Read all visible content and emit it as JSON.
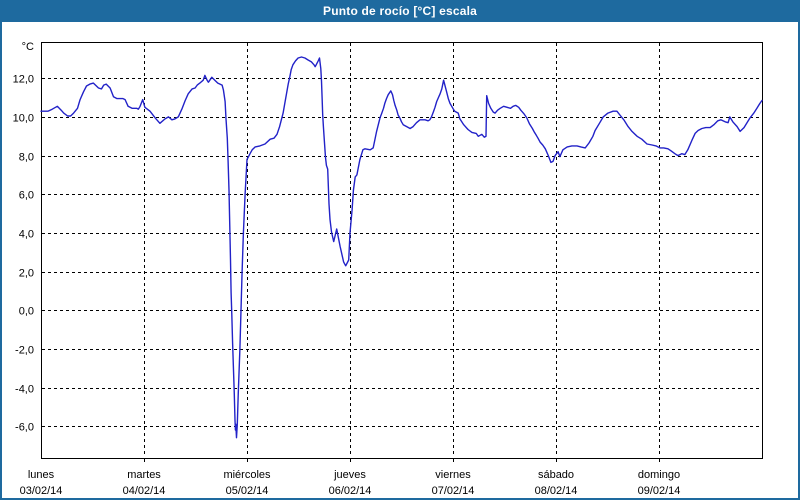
{
  "window": {
    "title": "Punto de rocío [°C] escala"
  },
  "colors": {
    "title_bar": "#1e6a9f",
    "title_text": "#ffffff",
    "window_border": "#1e6a9f",
    "plot_line": "#2222c8",
    "grid": "#000000",
    "background": "#ffffff"
  },
  "chart_data": {
    "type": "line",
    "title": "Punto de rocío [°C] escala",
    "ylabel": "°C",
    "legend": "none",
    "grid": {
      "style": "dashed",
      "color": "#000000"
    },
    "y_axis": {
      "unit_label": "°C",
      "tick_values": [
        12,
        10,
        8,
        6,
        4,
        2,
        0,
        -2,
        -4,
        -6
      ],
      "tick_labels": [
        "12,0",
        "10,0",
        "8,0",
        "6,0",
        "4,0",
        "2,0",
        "0,0",
        "-2,0",
        "-4,0",
        "-6,0"
      ],
      "ylim": [
        -7.6,
        13.9
      ]
    },
    "x_axis": {
      "hours_range": [
        0,
        168
      ],
      "day_tick_hours": [
        0,
        24,
        48,
        72,
        96,
        120,
        144
      ],
      "days": [
        {
          "name": "lunes",
          "date": "03/02/14"
        },
        {
          "name": "martes",
          "date": "04/02/14"
        },
        {
          "name": "miércoles",
          "date": "05/02/14"
        },
        {
          "name": "jueves",
          "date": "06/02/14"
        },
        {
          "name": "viernes",
          "date": "07/02/14"
        },
        {
          "name": "sábado",
          "date": "08/02/14"
        },
        {
          "name": "domingo",
          "date": "09/02/14"
        }
      ]
    },
    "series": [
      {
        "name": "Punto de rocío",
        "unit": "°C",
        "color": "#2222c8",
        "points_hours_value": [
          [
            0,
            10.3
          ],
          [
            1.6,
            10.3
          ],
          [
            2.6,
            10.4
          ],
          [
            3.8,
            10.55
          ],
          [
            4.7,
            10.35
          ],
          [
            5.3,
            10.2
          ],
          [
            6.2,
            10.05
          ],
          [
            6.9,
            10.05
          ],
          [
            7.6,
            10.2
          ],
          [
            8.5,
            10.45
          ],
          [
            9.1,
            10.9
          ],
          [
            9.9,
            11.3
          ],
          [
            10.6,
            11.6
          ],
          [
            11.4,
            11.7
          ],
          [
            12.2,
            11.75
          ],
          [
            13.4,
            11.5
          ],
          [
            14.1,
            11.45
          ],
          [
            14.6,
            11.65
          ],
          [
            15.2,
            11.7
          ],
          [
            16.1,
            11.5
          ],
          [
            16.9,
            11.05
          ],
          [
            17.7,
            10.95
          ],
          [
            19.1,
            10.95
          ],
          [
            19.6,
            10.9
          ],
          [
            20.3,
            10.55
          ],
          [
            21.2,
            10.45
          ],
          [
            22.3,
            10.45
          ],
          [
            22.7,
            10.4
          ],
          [
            23.1,
            10.55
          ],
          [
            23.7,
            10.9
          ],
          [
            24.2,
            10.5
          ],
          [
            25.4,
            10.3
          ],
          [
            26.6,
            9.95
          ],
          [
            27.7,
            9.67
          ],
          [
            28.9,
            9.9
          ],
          [
            29.7,
            10.0
          ],
          [
            30.5,
            9.85
          ],
          [
            31.2,
            9.9
          ],
          [
            32.0,
            10.0
          ],
          [
            32.9,
            10.45
          ],
          [
            33.6,
            10.85
          ],
          [
            34.3,
            11.2
          ],
          [
            35.2,
            11.45
          ],
          [
            35.9,
            11.5
          ],
          [
            36.4,
            11.65
          ],
          [
            37.0,
            11.75
          ],
          [
            37.8,
            11.9
          ],
          [
            38.2,
            12.15
          ],
          [
            38.7,
            11.9
          ],
          [
            39.0,
            11.8
          ],
          [
            39.8,
            12.05
          ],
          [
            40.5,
            11.9
          ],
          [
            41.2,
            11.75
          ],
          [
            42.2,
            11.65
          ],
          [
            42.5,
            11.4
          ],
          [
            42.9,
            10.8
          ],
          [
            43.1,
            9.9
          ],
          [
            43.4,
            8.9
          ],
          [
            43.6,
            7.7
          ],
          [
            43.8,
            6.2
          ],
          [
            44.0,
            4.3
          ],
          [
            44.15,
            2.6
          ],
          [
            44.3,
            0.9
          ],
          [
            44.45,
            -0.2
          ],
          [
            44.65,
            -1.7
          ],
          [
            44.85,
            -3.1
          ],
          [
            45.05,
            -4.35
          ],
          [
            45.2,
            -5.7
          ],
          [
            45.3,
            -6.2
          ],
          [
            45.4,
            -5.9
          ],
          [
            45.55,
            -6.6
          ],
          [
            45.75,
            -5.9
          ],
          [
            45.95,
            -4.4
          ],
          [
            46.35,
            -2.0
          ],
          [
            46.6,
            0.0
          ],
          [
            46.85,
            2.0
          ],
          [
            47.15,
            4.0
          ],
          [
            47.55,
            6.0
          ],
          [
            48.0,
            7.8
          ],
          [
            48.7,
            8.1
          ],
          [
            49.2,
            8.3
          ],
          [
            49.9,
            8.45
          ],
          [
            51.0,
            8.5
          ],
          [
            52.2,
            8.6
          ],
          [
            53.4,
            8.85
          ],
          [
            54.3,
            8.9
          ],
          [
            55.0,
            9.1
          ],
          [
            55.6,
            9.5
          ],
          [
            56.4,
            10.2
          ],
          [
            56.8,
            10.7
          ],
          [
            57.2,
            11.2
          ],
          [
            57.6,
            11.7
          ],
          [
            58.0,
            12.1
          ],
          [
            58.3,
            12.45
          ],
          [
            58.7,
            12.7
          ],
          [
            59.3,
            12.9
          ],
          [
            59.9,
            13.05
          ],
          [
            60.7,
            13.1
          ],
          [
            61.5,
            13.05
          ],
          [
            62.2,
            12.95
          ],
          [
            63.0,
            12.85
          ],
          [
            63.6,
            12.7
          ],
          [
            63.9,
            12.6
          ],
          [
            64.6,
            12.9
          ],
          [
            64.9,
            13.05
          ],
          [
            65.2,
            12.5
          ],
          [
            65.35,
            11.85
          ],
          [
            65.5,
            11.0
          ],
          [
            65.65,
            10.1
          ],
          [
            65.8,
            9.5
          ],
          [
            66.0,
            8.8
          ],
          [
            66.3,
            7.9
          ],
          [
            66.5,
            7.5
          ],
          [
            66.8,
            7.3
          ],
          [
            67.1,
            5.5
          ],
          [
            67.35,
            4.7
          ],
          [
            67.7,
            4.05
          ],
          [
            68.2,
            3.55
          ],
          [
            68.9,
            4.2
          ],
          [
            69.7,
            3.3
          ],
          [
            70.5,
            2.5
          ],
          [
            71.0,
            2.3
          ],
          [
            71.7,
            2.6
          ],
          [
            72.0,
            4.0
          ],
          [
            72.5,
            5.2
          ],
          [
            72.8,
            6.2
          ],
          [
            73.2,
            6.9
          ],
          [
            73.6,
            7.0
          ],
          [
            74.3,
            7.8
          ],
          [
            75.0,
            8.3
          ],
          [
            75.5,
            8.35
          ],
          [
            76.7,
            8.3
          ],
          [
            77.4,
            8.4
          ],
          [
            78.2,
            9.25
          ],
          [
            78.6,
            9.6
          ],
          [
            79.0,
            9.95
          ],
          [
            79.4,
            10.2
          ],
          [
            79.8,
            10.45
          ],
          [
            80.1,
            10.7
          ],
          [
            80.5,
            10.95
          ],
          [
            80.9,
            11.15
          ],
          [
            81.5,
            11.35
          ],
          [
            81.9,
            11.15
          ],
          [
            82.2,
            10.85
          ],
          [
            82.5,
            10.6
          ],
          [
            82.9,
            10.35
          ],
          [
            83.2,
            10.1
          ],
          [
            83.6,
            9.95
          ],
          [
            84.0,
            9.75
          ],
          [
            84.4,
            9.6
          ],
          [
            85.2,
            9.5
          ],
          [
            86.0,
            9.4
          ],
          [
            86.7,
            9.5
          ],
          [
            87.5,
            9.7
          ],
          [
            88.3,
            9.85
          ],
          [
            89.5,
            9.85
          ],
          [
            90.2,
            9.8
          ],
          [
            90.6,
            9.85
          ],
          [
            91.0,
            10.0
          ],
          [
            91.4,
            10.25
          ],
          [
            91.8,
            10.5
          ],
          [
            92.2,
            10.8
          ],
          [
            92.6,
            11.0
          ],
          [
            93.0,
            11.2
          ],
          [
            93.4,
            11.45
          ],
          [
            93.8,
            11.9
          ],
          [
            94.5,
            11.3
          ],
          [
            94.9,
            10.95
          ],
          [
            95.3,
            10.7
          ],
          [
            96.1,
            10.4
          ],
          [
            96.4,
            10.3
          ],
          [
            97.2,
            10.2
          ],
          [
            97.6,
            9.9
          ],
          [
            98.5,
            9.6
          ],
          [
            99.5,
            9.35
          ],
          [
            100.4,
            9.2
          ],
          [
            101.4,
            9.15
          ],
          [
            101.9,
            9.0
          ],
          [
            102.7,
            9.1
          ],
          [
            103.3,
            8.95
          ],
          [
            103.7,
            9.0
          ],
          [
            103.85,
            11.1
          ],
          [
            104.3,
            10.7
          ],
          [
            104.8,
            10.45
          ],
          [
            105.4,
            10.25
          ],
          [
            105.8,
            10.2
          ],
          [
            106.4,
            10.35
          ],
          [
            107.0,
            10.45
          ],
          [
            107.8,
            10.55
          ],
          [
            108.6,
            10.5
          ],
          [
            109.4,
            10.45
          ],
          [
            110.0,
            10.55
          ],
          [
            110.6,
            10.6
          ],
          [
            111.3,
            10.5
          ],
          [
            111.8,
            10.35
          ],
          [
            112.6,
            10.15
          ],
          [
            113.2,
            9.95
          ],
          [
            113.8,
            9.65
          ],
          [
            114.5,
            9.4
          ],
          [
            115.0,
            9.2
          ],
          [
            115.4,
            9.05
          ],
          [
            115.8,
            8.9
          ],
          [
            116.3,
            8.7
          ],
          [
            116.9,
            8.55
          ],
          [
            117.5,
            8.35
          ],
          [
            118.2,
            8.0
          ],
          [
            118.8,
            7.65
          ],
          [
            119.3,
            7.7
          ],
          [
            119.8,
            8.0
          ],
          [
            120.5,
            8.2
          ],
          [
            120.9,
            7.95
          ],
          [
            121.6,
            8.3
          ],
          [
            122.6,
            8.45
          ],
          [
            123.7,
            8.5
          ],
          [
            124.9,
            8.5
          ],
          [
            125.8,
            8.45
          ],
          [
            126.8,
            8.4
          ],
          [
            127.7,
            8.65
          ],
          [
            128.6,
            9.0
          ],
          [
            129.1,
            9.3
          ],
          [
            130.2,
            9.7
          ],
          [
            131.0,
            10.0
          ],
          [
            132.1,
            10.2
          ],
          [
            133.3,
            10.3
          ],
          [
            134.2,
            10.3
          ],
          [
            134.9,
            10.1
          ],
          [
            135.8,
            9.85
          ],
          [
            136.8,
            9.5
          ],
          [
            137.7,
            9.25
          ],
          [
            138.9,
            9.0
          ],
          [
            140.0,
            8.85
          ],
          [
            141.2,
            8.6
          ],
          [
            142.4,
            8.55
          ],
          [
            143.3,
            8.5
          ],
          [
            144.2,
            8.4
          ],
          [
            145.1,
            8.4
          ],
          [
            146.1,
            8.35
          ],
          [
            146.8,
            8.25
          ],
          [
            147.7,
            8.1
          ],
          [
            148.4,
            8.0
          ],
          [
            149.3,
            8.1
          ],
          [
            150.0,
            8.05
          ],
          [
            150.7,
            8.3
          ],
          [
            151.7,
            8.8
          ],
          [
            152.4,
            9.15
          ],
          [
            153.1,
            9.3
          ],
          [
            154.0,
            9.4
          ],
          [
            154.9,
            9.45
          ],
          [
            155.9,
            9.45
          ],
          [
            156.8,
            9.6
          ],
          [
            157.7,
            9.8
          ],
          [
            158.4,
            9.85
          ],
          [
            159.4,
            9.75
          ],
          [
            160.1,
            9.7
          ],
          [
            160.5,
            10.0
          ],
          [
            161.2,
            9.75
          ],
          [
            162.2,
            9.5
          ],
          [
            162.9,
            9.25
          ],
          [
            163.8,
            9.45
          ],
          [
            164.5,
            9.7
          ],
          [
            165.2,
            9.95
          ],
          [
            166.1,
            10.2
          ],
          [
            166.8,
            10.45
          ],
          [
            167.5,
            10.7
          ],
          [
            168.0,
            10.85
          ]
        ]
      }
    ]
  }
}
